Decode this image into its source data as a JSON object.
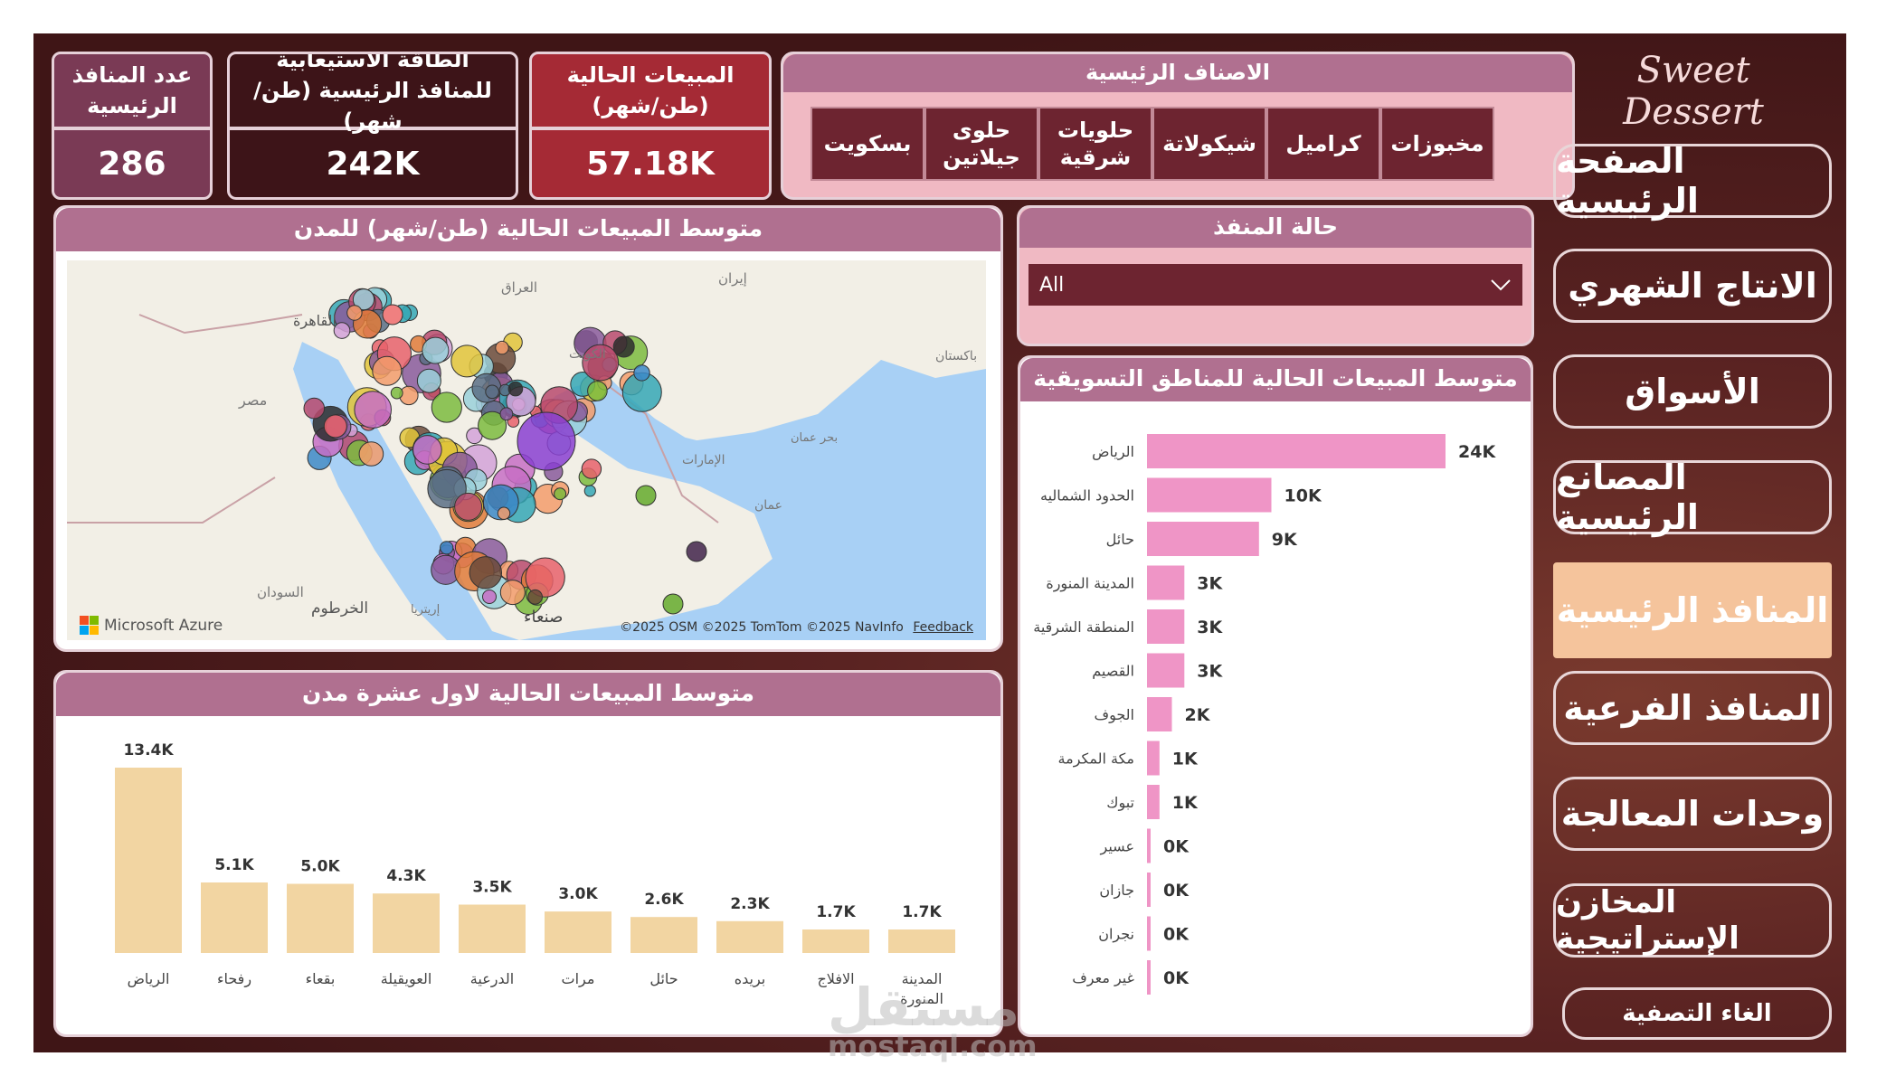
{
  "kpis": [
    {
      "label": "عدد المنافذ الرئيسية",
      "value": "286",
      "color": "#7a3a55"
    },
    {
      "label": "الطاقة الاستيعابية للمنافذ الرئيسية (طن/شهر)",
      "value": "242K",
      "color": "#3d1418"
    },
    {
      "label": "المبيعات الحالية (طن/شهر)",
      "value": "57.18K",
      "color": "#a52a35"
    }
  ],
  "categories": {
    "title": "الاصناف الرئيسية",
    "items": [
      "مخبوزات",
      "كراميل",
      "شيكولاتة",
      "حلويات شرقية",
      "حلوى جيلاتين",
      "بسكويت"
    ]
  },
  "map_card": {
    "title": "متوسط المبيعات الحالية (طن/شهر) للمدن",
    "attribution": "©2025 OSM  ©2025 TomTom ©2025 NavInfo",
    "feedback": "Feedback",
    "brand": "Microsoft Azure",
    "place_labels": [
      "القاهرة",
      "العراق",
      "إيران",
      "الكويت",
      "مصر",
      "الإمارات",
      "عمان",
      "السودان",
      "الخرطوم",
      "إريتريا",
      "صنعاء",
      "باكستان",
      "بحر عمان"
    ]
  },
  "status_filter": {
    "title": "حالة المنفذ",
    "selected": "All"
  },
  "region_chart": {
    "title": "متوسط المبيعات الحالية للمناطق التسويقية",
    "bar_color": "#ef95c6"
  },
  "city_chart": {
    "title": "متوسط المبيعات الحالية لاول عشرة مدن",
    "bar_color": "#f2d5a2"
  },
  "chart_data": [
    {
      "type": "bar",
      "orientation": "horizontal",
      "categories": [
        "الرياض",
        "الحدود الشماليه",
        "حائل",
        "المدينة المنورة",
        "المنطقة الشرقية",
        "القصيم",
        "الجوف",
        "مكة المكرمة",
        "تبوك",
        "عسير",
        "جازان",
        "نجران",
        "غير معرف"
      ],
      "values": [
        24,
        10,
        9,
        3,
        3,
        3,
        2,
        1,
        1,
        0,
        0,
        0,
        0
      ],
      "data_labels": [
        "24K",
        "10K",
        "9K",
        "3K",
        "3K",
        "3K",
        "2K",
        "1K",
        "1K",
        "0K",
        "0K",
        "0K",
        "0K"
      ],
      "title": "متوسط المبيعات الحالية للمناطق التسويقية"
    },
    {
      "type": "bar",
      "orientation": "vertical",
      "categories": [
        "الرياض",
        "رفحاء",
        "بقعاء",
        "العويقيلة",
        "الدرعية",
        "مرات",
        "حائل",
        "بريده",
        "الافلاج",
        "المدينة المنورة"
      ],
      "values": [
        13.4,
        5.1,
        5.0,
        4.3,
        3.5,
        3.0,
        2.6,
        2.3,
        1.7,
        1.7
      ],
      "data_labels": [
        "13.4K",
        "5.1K",
        "5.0K",
        "4.3K",
        "3.5K",
        "3.0K",
        "2.6K",
        "2.3K",
        "1.7K",
        "1.7K"
      ],
      "title": "متوسط المبيعات الحالية لاول عشرة مدن"
    }
  ],
  "nav": {
    "brand": "Sweet Dessert",
    "items": [
      "الصفحة الرئيسية",
      "الانتاج الشهري",
      "الأسواق",
      "المصانع الرئيسية",
      "المنافذ الرئيسية",
      "المنافذ الفرعية",
      "وحدات المعالجة",
      "المخازن الإستراتيجية"
    ],
    "active_index": 4,
    "reset": "الغاء التصفية"
  },
  "watermark": {
    "arabic": "مستقل",
    "latin": "mostaql.com"
  }
}
